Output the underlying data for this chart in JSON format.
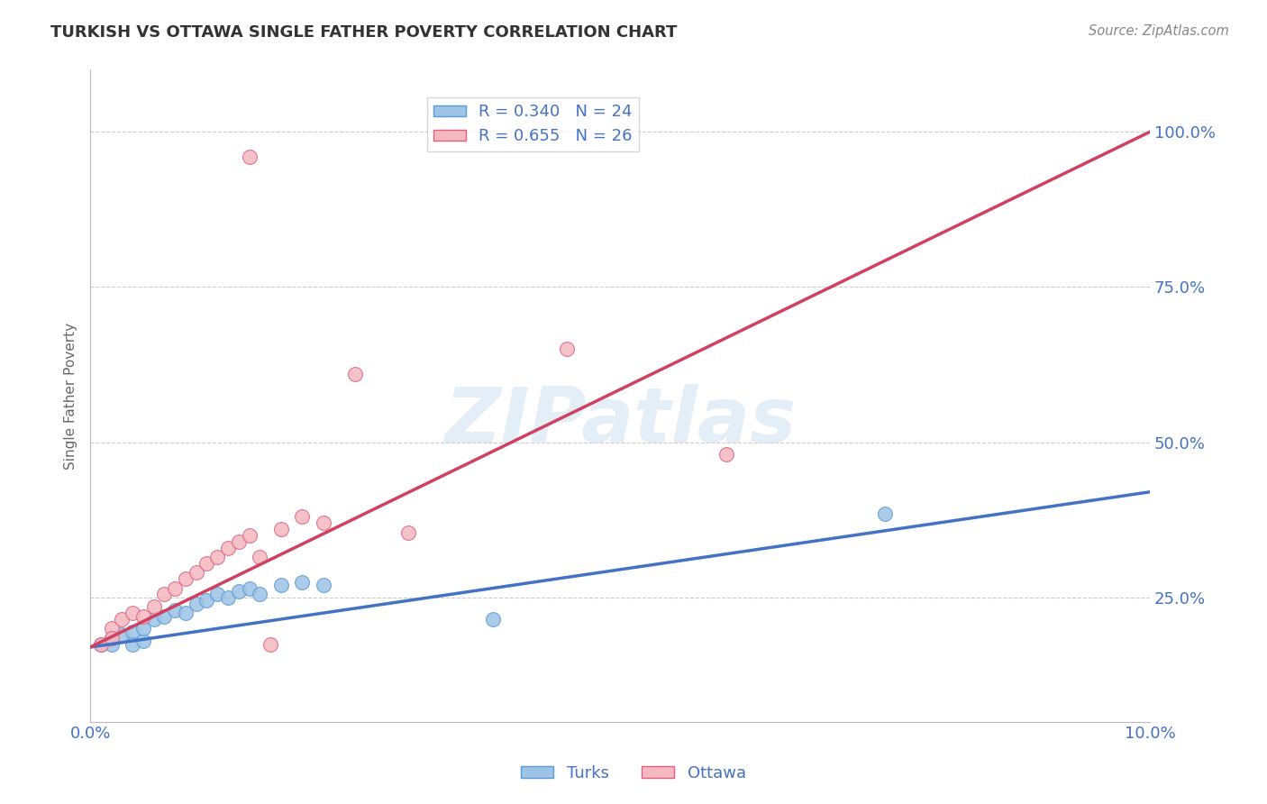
{
  "title": "TURKISH VS OTTAWA SINGLE FATHER POVERTY CORRELATION CHART",
  "source": "Source: ZipAtlas.com",
  "ylabel": "Single Father Poverty",
  "ytick_labels": [
    "100.0%",
    "75.0%",
    "50.0%",
    "25.0%"
  ],
  "ytick_positions": [
    1.0,
    0.75,
    0.5,
    0.25
  ],
  "watermark_text": "ZIPatlas",
  "legend_blue_label": "R = 0.340   N = 24",
  "legend_pink_label": "R = 0.655   N = 26",
  "legend_turks": "Turks",
  "legend_ottawa": "Ottawa",
  "blue_scatter_color": "#9dc3e6",
  "blue_scatter_edge": "#5b9bd5",
  "pink_scatter_color": "#f4b8c1",
  "pink_scatter_edge": "#e06080",
  "blue_line_color": "#4472c4",
  "pink_line_color": "#d04060",
  "axis_color": "#4472c4",
  "title_color": "#333333",
  "source_color": "#888888",
  "grid_color": "#cccccc",
  "background_color": "#ffffff",
  "xlim": [
    0.0,
    0.1
  ],
  "ylim": [
    0.05,
    1.1
  ],
  "blue_line": [
    0.0,
    0.1,
    0.17,
    0.42
  ],
  "pink_line": [
    0.0,
    0.1,
    0.17,
    1.0
  ],
  "turks_x": [
    0.001,
    0.002,
    0.002,
    0.003,
    0.004,
    0.004,
    0.005,
    0.005,
    0.006,
    0.007,
    0.008,
    0.009,
    0.01,
    0.011,
    0.012,
    0.013,
    0.014,
    0.015,
    0.016,
    0.018,
    0.02,
    0.022,
    0.038,
    0.075
  ],
  "turks_y": [
    0.175,
    0.185,
    0.175,
    0.19,
    0.195,
    0.175,
    0.18,
    0.2,
    0.215,
    0.22,
    0.23,
    0.225,
    0.24,
    0.245,
    0.255,
    0.25,
    0.26,
    0.265,
    0.255,
    0.27,
    0.275,
    0.27,
    0.215,
    0.385
  ],
  "ottawa_x": [
    0.001,
    0.002,
    0.002,
    0.003,
    0.004,
    0.005,
    0.006,
    0.007,
    0.008,
    0.009,
    0.01,
    0.011,
    0.012,
    0.013,
    0.014,
    0.015,
    0.016,
    0.018,
    0.02,
    0.022,
    0.025,
    0.03,
    0.06,
    0.045,
    0.017,
    0.015
  ],
  "ottawa_y": [
    0.175,
    0.2,
    0.185,
    0.215,
    0.225,
    0.22,
    0.235,
    0.255,
    0.265,
    0.28,
    0.29,
    0.305,
    0.315,
    0.33,
    0.34,
    0.35,
    0.315,
    0.36,
    0.38,
    0.37,
    0.61,
    0.355,
    0.48,
    0.65,
    0.175,
    0.96
  ]
}
